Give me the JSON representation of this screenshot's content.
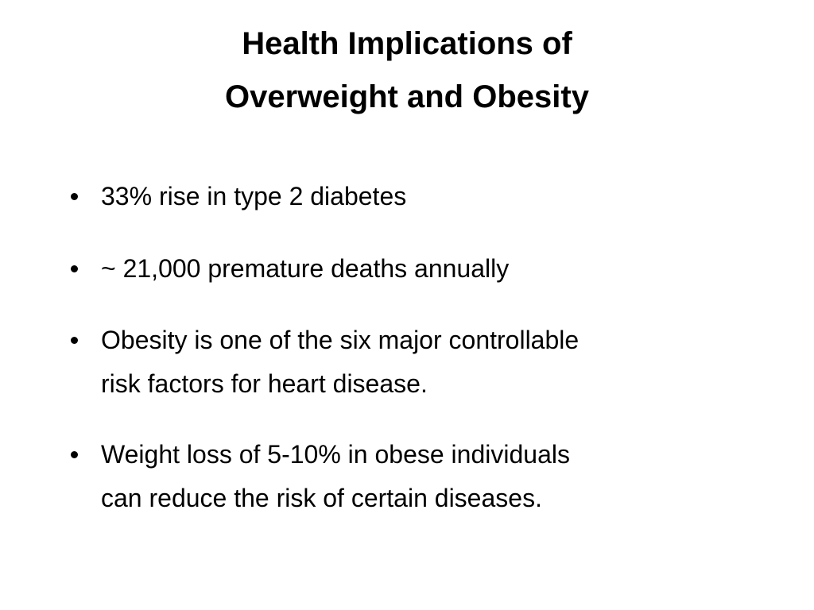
{
  "slide": {
    "title_lines": [
      "Health Implications of",
      "Overweight and Obesity"
    ],
    "bullets": [
      {
        "lines": [
          "33% rise in type 2 diabetes"
        ]
      },
      {
        "lines": [
          "~ 21,000 premature deaths annually"
        ]
      },
      {
        "lines": [
          "Obesity is one of the six major controllable",
          "risk factors for heart disease."
        ]
      },
      {
        "lines": [
          "Weight loss of 5-10% in obese individuals",
          "can reduce the risk of certain diseases."
        ]
      }
    ]
  }
}
